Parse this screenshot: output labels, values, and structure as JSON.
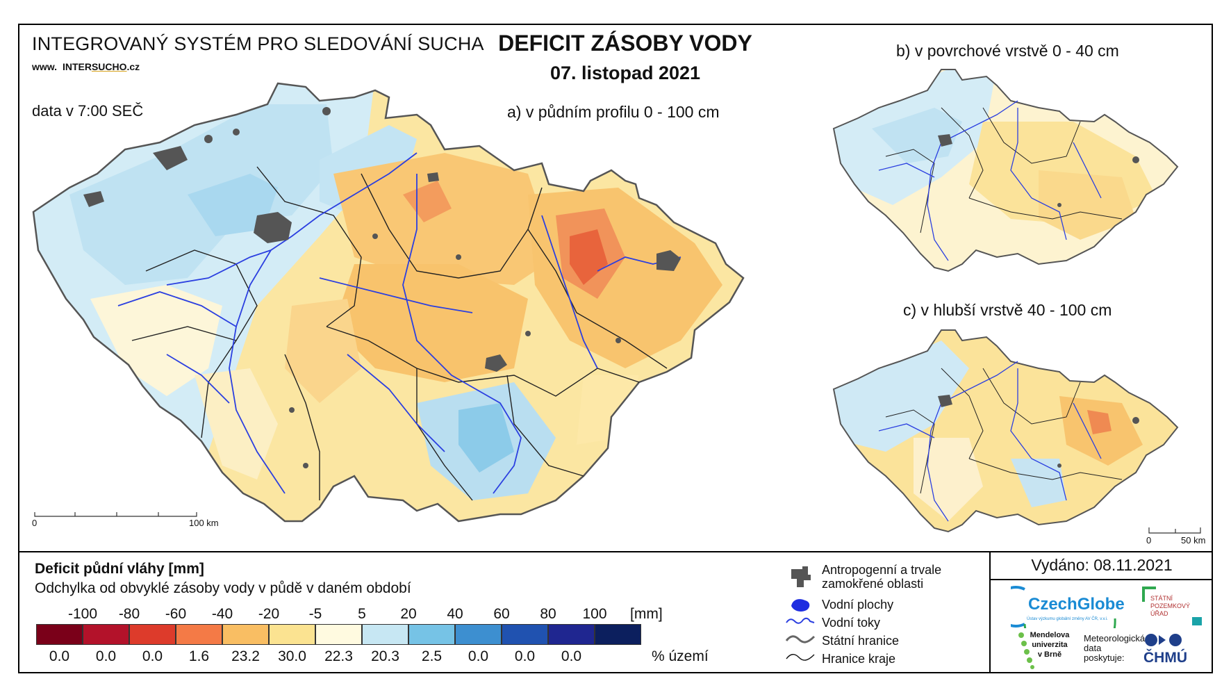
{
  "header": {
    "system_title": "INTEGROVANÝ SYSTÉM PRO SLEDOVÁNÍ SUCHA",
    "www_prefix": "www.",
    "www_inter": "INTER",
    "www_sucho": "SUCHO",
    "www_suffix": ".cz",
    "data_time": "data v 7:00 SEČ",
    "main_title": "DEFICIT ZÁSOBY VODY",
    "date": "07. listopad 2021"
  },
  "maps": {
    "a_label": "a) v půdním profilu 0 - 100 cm",
    "b_label": "b) v povrchové vrstvě 0 - 40 cm",
    "c_label": "c) v hlubší vrstvě 40 - 100 cm",
    "scale_a": {
      "start": "0",
      "end": "100 km"
    },
    "scale_c": {
      "start": "0",
      "end": "50 km"
    }
  },
  "legend": {
    "title": "Deficit půdní vláhy  [mm]",
    "subtitle": "Odchylka od obvyklé zásoby vody v půdě v daném období",
    "breaks": [
      "-100",
      "-80",
      "-60",
      "-40",
      "-20",
      "-5",
      "5",
      "20",
      "40",
      "60",
      "80",
      "100"
    ],
    "unit": "[mm]",
    "classes": [
      {
        "color": "#7a0019",
        "pct": "0.0"
      },
      {
        "color": "#b3122a",
        "pct": "0.0"
      },
      {
        "color": "#dd3b2b",
        "pct": "0.0"
      },
      {
        "color": "#f47a46",
        "pct": "1.6"
      },
      {
        "color": "#f9be63",
        "pct": "23.2"
      },
      {
        "color": "#fbe391",
        "pct": "30.0"
      },
      {
        "color": "#fffae0",
        "pct": "22.3"
      },
      {
        "color": "#c7e7f3",
        "pct": "20.3"
      },
      {
        "color": "#76c3e6",
        "pct": "2.5"
      },
      {
        "color": "#3d8fd0",
        "pct": "0.0"
      },
      {
        "color": "#2052b0",
        "pct": "0.0"
      },
      {
        "color": "#1f2690",
        "pct": "0.0"
      },
      {
        "color": "#0c1f5e",
        "pct": ""
      }
    ],
    "pct_unit": "% území"
  },
  "symbols": {
    "anthropogenic": "Antropogenní a trvale zamokřené oblasti",
    "water_bodies": "Vodní plochy",
    "rivers": "Vodní toky",
    "state_border": "Státní hranice",
    "region_border": "Hranice kraje"
  },
  "issued": "Vydáno: 08.11.2021",
  "logos": {
    "czechglobe": "CzechGlobe",
    "czechglobe_sub": "Ústav výzkumu globální změny AV ČR, v.v.i.",
    "spu_1": "STÁTNÍ",
    "spu_2": "POZEMKOVÝ",
    "spu_3": "ÚŘAD",
    "mendel_1": "Mendelova",
    "mendel_2": "univerzita",
    "mendel_3": "v Brně",
    "met_1": "Meteorologická",
    "met_2": "data",
    "met_3": "poskytuje:",
    "chmu": "ČHMÚ"
  }
}
